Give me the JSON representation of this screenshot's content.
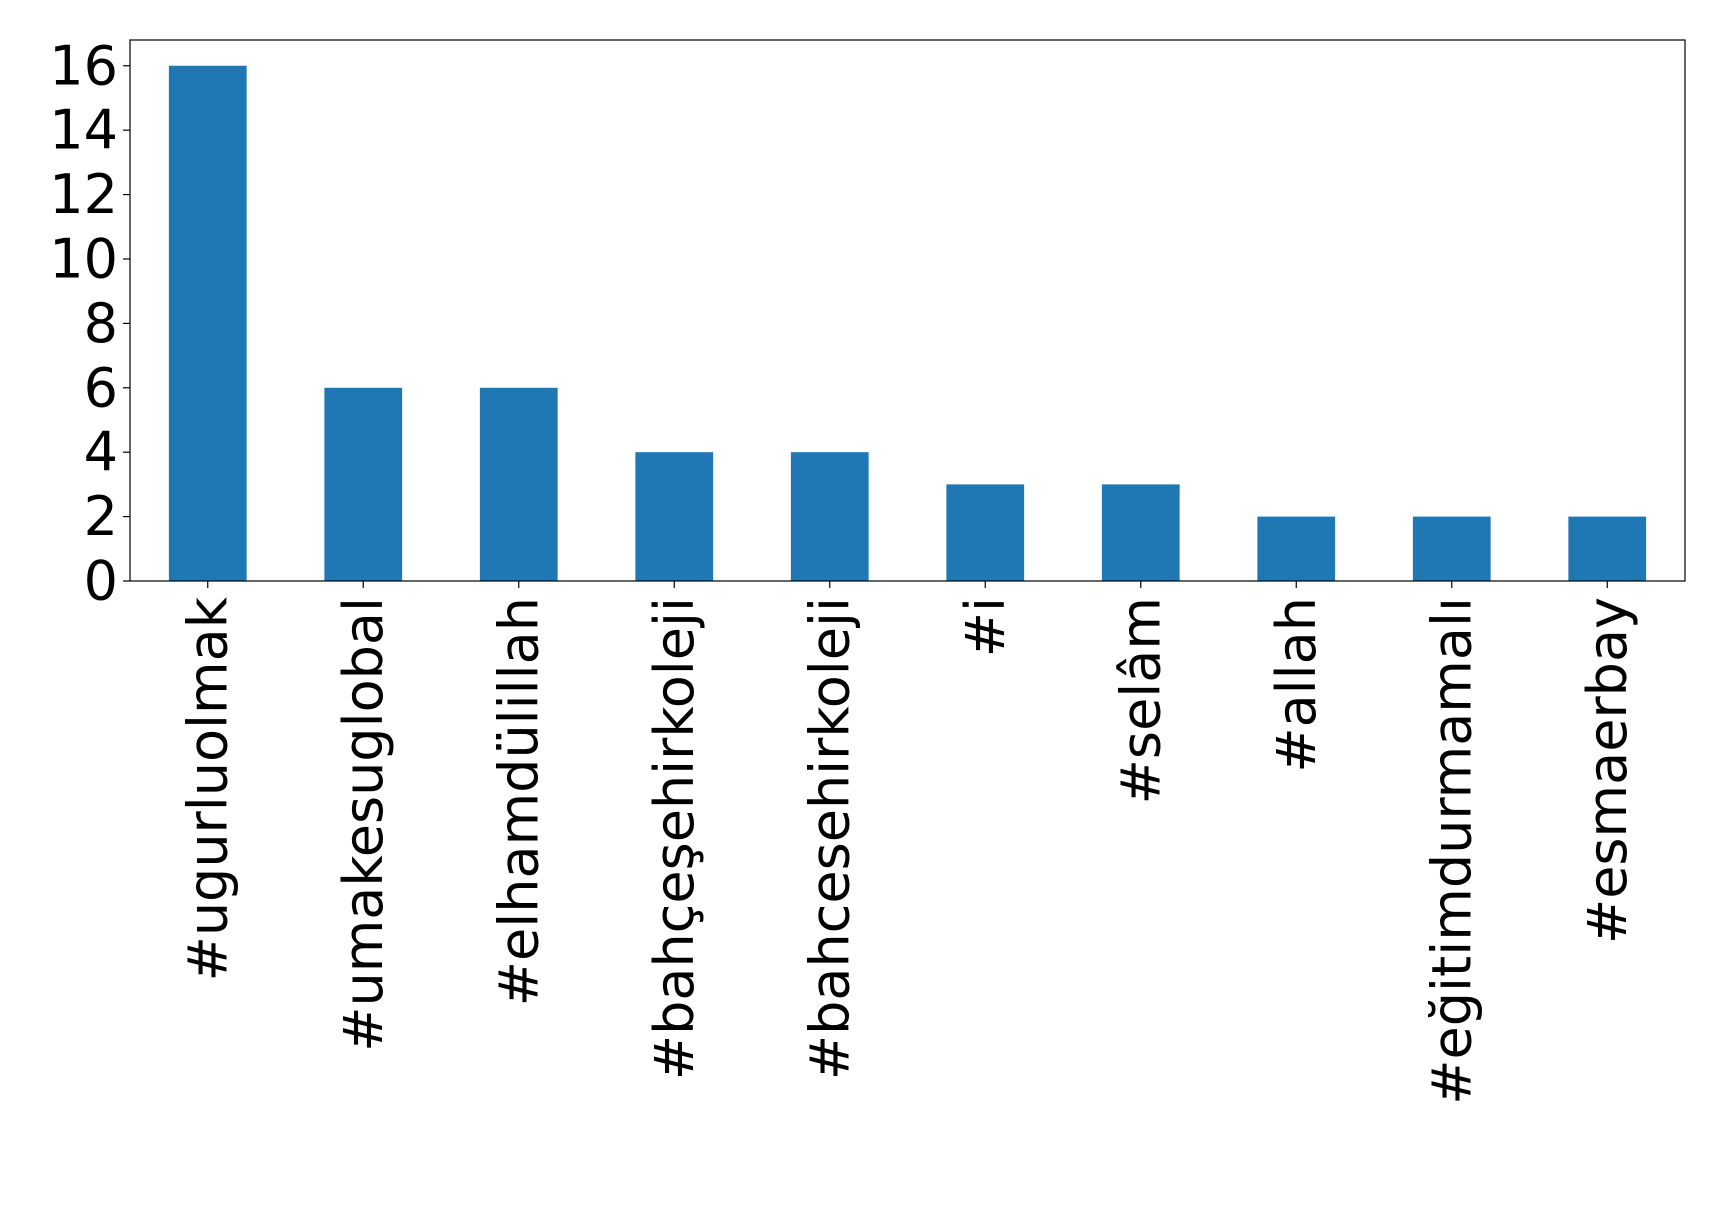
{
  "chart_data": {
    "type": "bar",
    "title": "",
    "xlabel": "",
    "ylabel": "",
    "categories": [
      "#ugurluolmak",
      "#umakesuglobal",
      "#elhamdülillah",
      "#bahçeşehirkoleji",
      "#bahcesehirkoleji",
      "#i",
      "#selâm",
      "#allah",
      "#eğitimdurmamalı",
      "#esmaerbay"
    ],
    "values": [
      16,
      6,
      6,
      4,
      4,
      3,
      3,
      2,
      2,
      2
    ],
    "ylim": [
      0,
      16.8
    ],
    "yticks": [
      0,
      2,
      4,
      6,
      8,
      10,
      12,
      14,
      16
    ],
    "grid": false,
    "legend": "none",
    "bar_color": "#1f77b4"
  }
}
